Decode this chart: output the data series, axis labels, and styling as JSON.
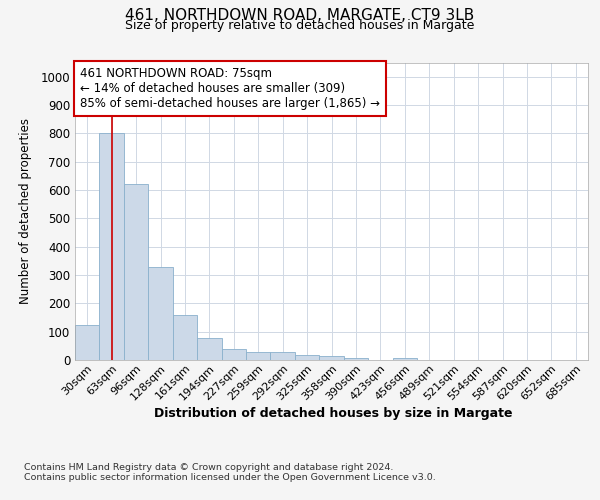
{
  "title1": "461, NORTHDOWN ROAD, MARGATE, CT9 3LB",
  "title2": "Size of property relative to detached houses in Margate",
  "xlabel": "Distribution of detached houses by size in Margate",
  "ylabel": "Number of detached properties",
  "bin_labels": [
    "30sqm",
    "63sqm",
    "96sqm",
    "128sqm",
    "161sqm",
    "194sqm",
    "227sqm",
    "259sqm",
    "292sqm",
    "325sqm",
    "358sqm",
    "390sqm",
    "423sqm",
    "456sqm",
    "489sqm",
    "521sqm",
    "554sqm",
    "587sqm",
    "620sqm",
    "652sqm",
    "685sqm"
  ],
  "bar_values": [
    122,
    800,
    620,
    330,
    160,
    78,
    40,
    28,
    28,
    18,
    13,
    8,
    0,
    8,
    0,
    0,
    0,
    0,
    0,
    0,
    0
  ],
  "bar_color": "#ccd9e8",
  "bar_edge_color": "#8ab0cc",
  "red_line_x": 1,
  "annotation_line1": "461 NORTHDOWN ROAD: 75sqm",
  "annotation_line2": "← 14% of detached houses are smaller (309)",
  "annotation_line3": "85% of semi-detached houses are larger (1,865) →",
  "annotation_box_color": "#ffffff",
  "annotation_box_edge": "#cc0000",
  "footnote1": "Contains HM Land Registry data © Crown copyright and database right 2024.",
  "footnote2": "Contains public sector information licensed under the Open Government Licence v3.0.",
  "ylim": [
    0,
    1050
  ],
  "yticks": [
    0,
    100,
    200,
    300,
    400,
    500,
    600,
    700,
    800,
    900,
    1000
  ],
  "background_color": "#f5f5f5",
  "plot_background": "#ffffff",
  "grid_color": "#d0d8e4"
}
